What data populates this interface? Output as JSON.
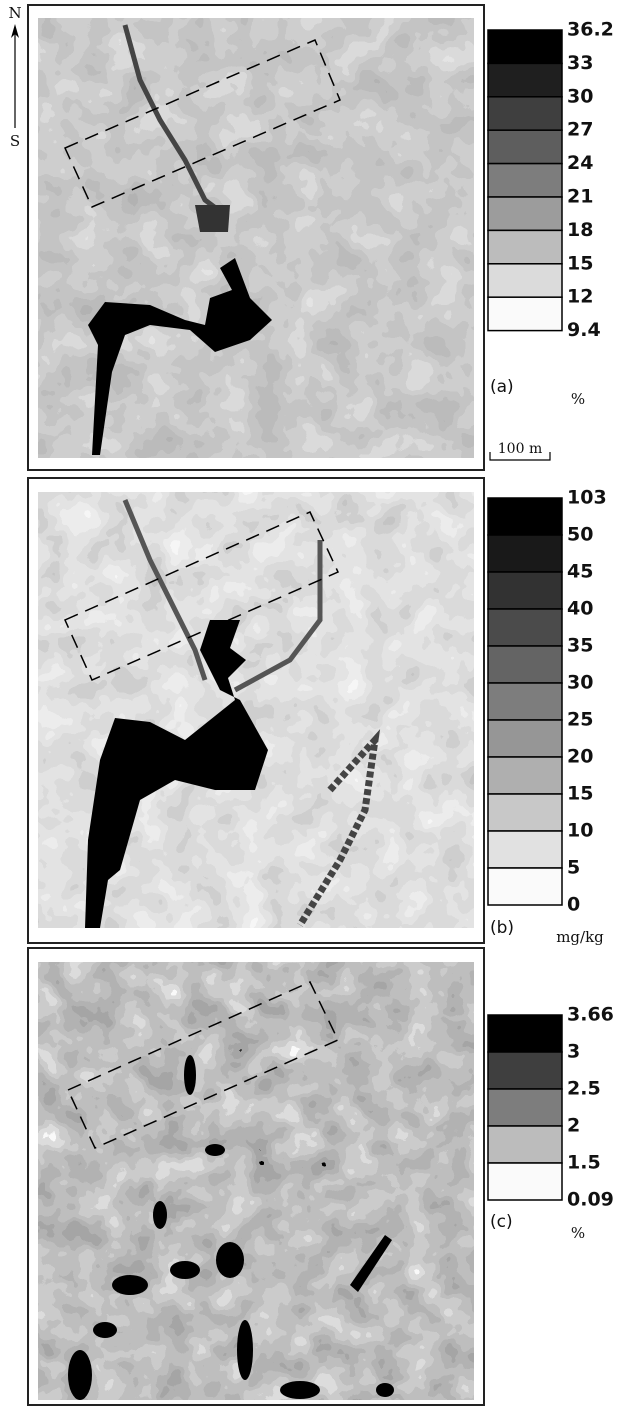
{
  "north": "N",
  "south": "S",
  "scale_bar": "100 m",
  "panels": [
    {
      "label": "(a)",
      "unit": "%",
      "legend": [
        "36.2",
        "33",
        "30",
        "27",
        "24",
        "21",
        "18",
        "15",
        "12",
        "9.4"
      ]
    },
    {
      "label": "(b)",
      "unit": "mg/kg",
      "legend": [
        "103",
        "50",
        "45",
        "40",
        "35",
        "30",
        "25",
        "20",
        "15",
        "10",
        "5",
        "0"
      ]
    },
    {
      "label": "(c)",
      "unit": "%",
      "legend": [
        "3.66",
        "3",
        "2.5",
        "2",
        "1.5",
        "0.09"
      ]
    }
  ]
}
